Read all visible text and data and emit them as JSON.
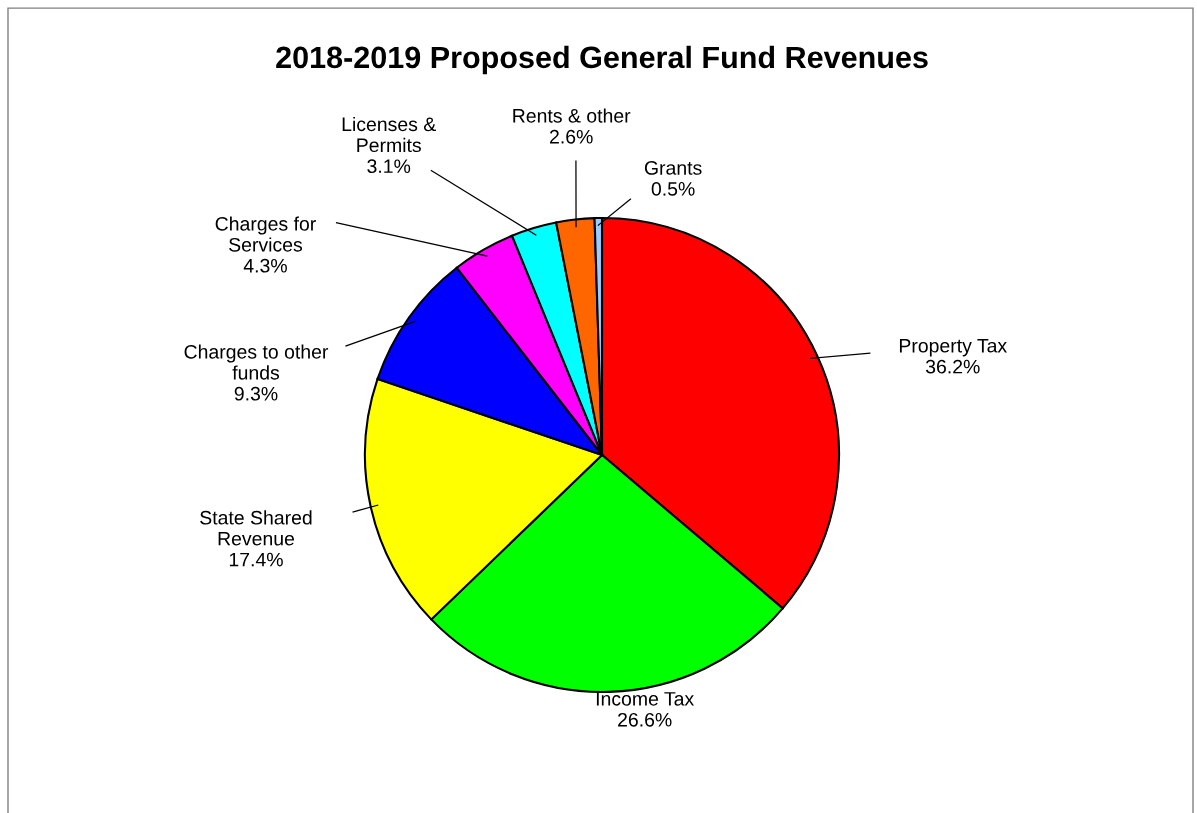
{
  "chart_data": {
    "type": "pie",
    "title": "2018-2019 Proposed General Fund Revenues",
    "categories": [
      "Property Tax",
      "Income Tax",
      "State Shared\nRevenue",
      "Charges to other\nfunds",
      "Charges for\nServices",
      "Licenses &\nPermits",
      "Rents & other",
      "Grants"
    ],
    "values": [
      36.2,
      26.6,
      17.4,
      9.3,
      4.3,
      3.1,
      2.6,
      0.5
    ],
    "value_labels": [
      "36.2%",
      "26.6%",
      "17.4%",
      "9.3%",
      "4.3%",
      "3.1%",
      "2.6%",
      "0.5%"
    ],
    "colors": [
      "#ff0000",
      "#00ff00",
      "#ffff00",
      "#0000ff",
      "#ff00ff",
      "#00ffff",
      "#ff6600",
      "#99ccff"
    ]
  }
}
